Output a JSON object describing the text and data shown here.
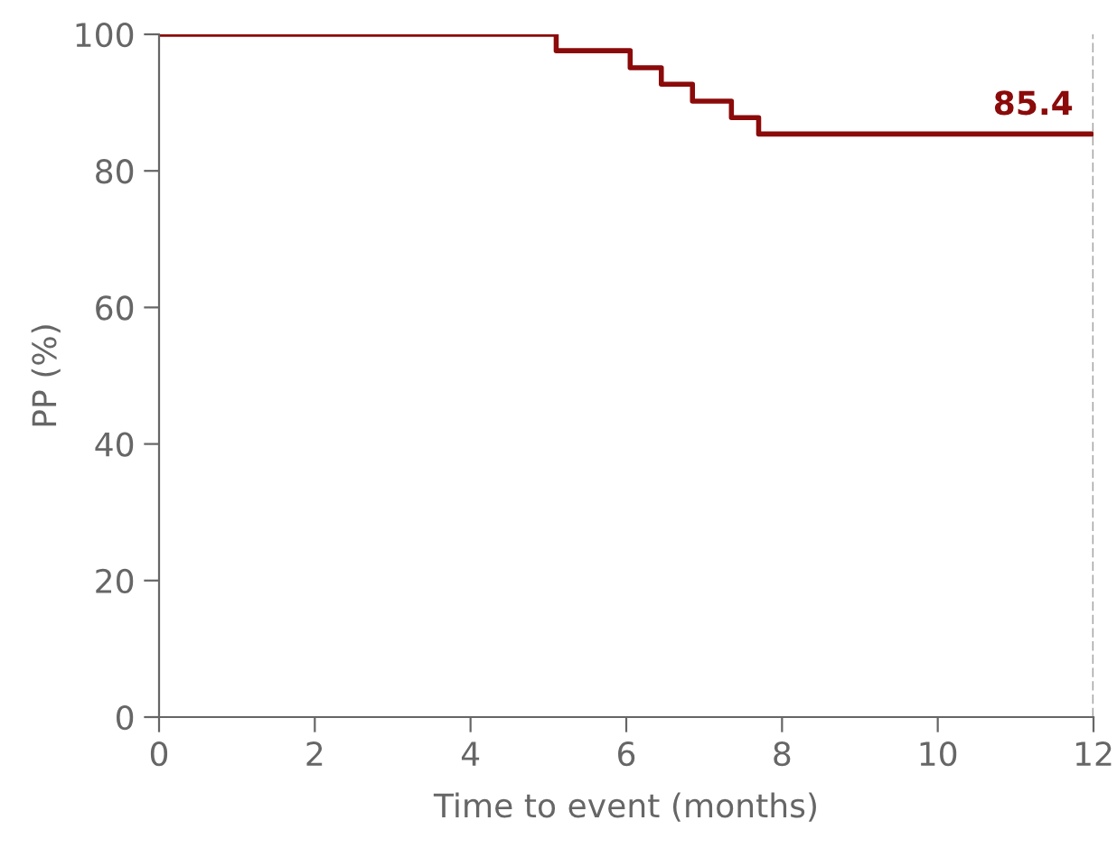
{
  "chart_data": {
    "type": "step",
    "xlabel": "Time to event (months)",
    "ylabel": "PP (%)",
    "x": [
      0,
      5.1,
      6.05,
      6.45,
      6.85,
      7.35,
      7.7,
      12
    ],
    "series": [
      {
        "color": "#8b0a0a",
        "values": [
          100,
          97.6,
          95.1,
          92.7,
          90.2,
          87.8,
          85.4,
          85.4
        ]
      }
    ],
    "xlim": [
      0,
      12
    ],
    "xticks": [
      0,
      2,
      4,
      6,
      8,
      10,
      12
    ],
    "ylim": [
      0,
      100
    ],
    "yticks": [
      0,
      20,
      40,
      60,
      80,
      100
    ],
    "ref_lines": [
      {
        "axis": "x",
        "value": 12,
        "label": null,
        "color": "#a0a0a0",
        "line_style": "dashed"
      }
    ],
    "annotations": [
      {
        "text": "85.4",
        "x": 12,
        "y": 85.4
      }
    ],
    "grid": false,
    "legend": false,
    "marker": "none",
    "line_style": "solid"
  }
}
